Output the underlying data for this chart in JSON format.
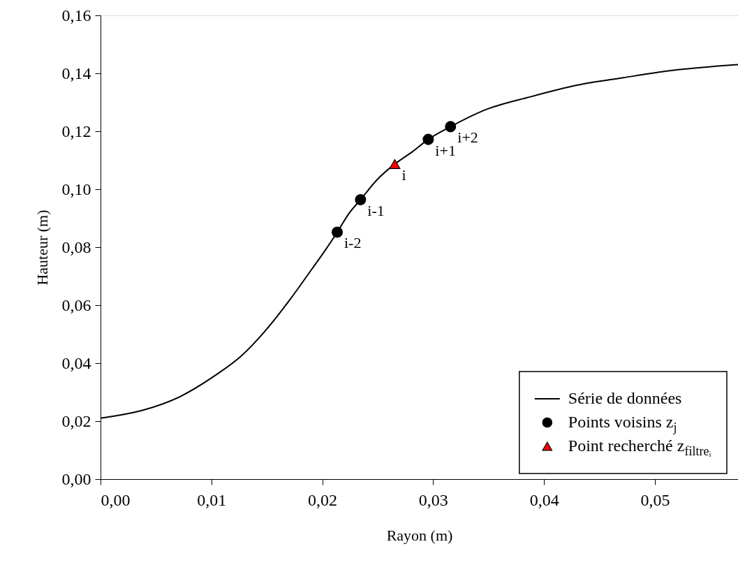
{
  "chart_data": {
    "type": "line",
    "xlabel": "Rayon (m)",
    "ylabel": "Hauteur (m)",
    "xlim": [
      0,
      0.0575
    ],
    "ylim": [
      0,
      0.16
    ],
    "xticks": [
      {
        "value": 0,
        "label": "0,00"
      },
      {
        "value": 0.01,
        "label": "0,01"
      },
      {
        "value": 0.02,
        "label": "0,02"
      },
      {
        "value": 0.03,
        "label": "0,03"
      },
      {
        "value": 0.04,
        "label": "0,04"
      },
      {
        "value": 0.05,
        "label": "0,05"
      }
    ],
    "yticks": [
      {
        "value": 0,
        "label": "0,00"
      },
      {
        "value": 0.02,
        "label": "0,02"
      },
      {
        "value": 0.04,
        "label": "0,04"
      },
      {
        "value": 0.06,
        "label": "0,06"
      },
      {
        "value": 0.08,
        "label": "0,08"
      },
      {
        "value": 0.1,
        "label": "0,10"
      },
      {
        "value": 0.12,
        "label": "0,12"
      },
      {
        "value": 0.14,
        "label": "0,14"
      },
      {
        "value": 0.16,
        "label": "0,16"
      }
    ],
    "grid": false,
    "legend": "bottom right",
    "series": [
      {
        "name": "Série de données",
        "type": "line",
        "color": "#000000",
        "line_style": "solid",
        "x": [
          0,
          0.00395,
          0.00709,
          0.01024,
          0.01276,
          0.01485,
          0.01716,
          0.01905,
          0.02031,
          0.02135,
          0.0224,
          0.02345,
          0.02492,
          0.02654,
          0.02807,
          0.02956,
          0.03157,
          0.03457,
          0.03877,
          0.04296,
          0.04716,
          0.05135,
          0.0575
        ],
        "values": [
          0.021,
          0.0239,
          0.0283,
          0.0355,
          0.0427,
          0.0511,
          0.0623,
          0.0724,
          0.0792,
          0.0852,
          0.0916,
          0.0964,
          0.1032,
          0.1087,
          0.1128,
          0.1172,
          0.1216,
          0.1272,
          0.1319,
          0.1359,
          0.1385,
          0.1409,
          0.143
        ]
      },
      {
        "name": "Points voisins z$_{j}$",
        "type": "scatter",
        "color": "#000000",
        "marker": "circle",
        "x": [
          0.02135,
          0.02345,
          0.02956,
          0.03157
        ],
        "values": [
          0.0852,
          0.0964,
          0.1172,
          0.1216
        ]
      },
      {
        "name": "Point recherché z$_{filtreᵢ}$",
        "type": "scatter",
        "color": "#ff0000",
        "marker": "triangle",
        "x": [
          0.02654
        ],
        "values": [
          0.1087
        ]
      }
    ],
    "annotations": [
      {
        "text": "i-2",
        "x": 0.02135,
        "y": 0.0852
      },
      {
        "text": "i-1",
        "x": 0.02345,
        "y": 0.0964
      },
      {
        "text": "i",
        "x": 0.02654,
        "y": 0.1087
      },
      {
        "text": "i+1",
        "x": 0.02956,
        "y": 0.1172
      },
      {
        "text": "i+2",
        "x": 0.03157,
        "y": 0.1216
      }
    ]
  }
}
